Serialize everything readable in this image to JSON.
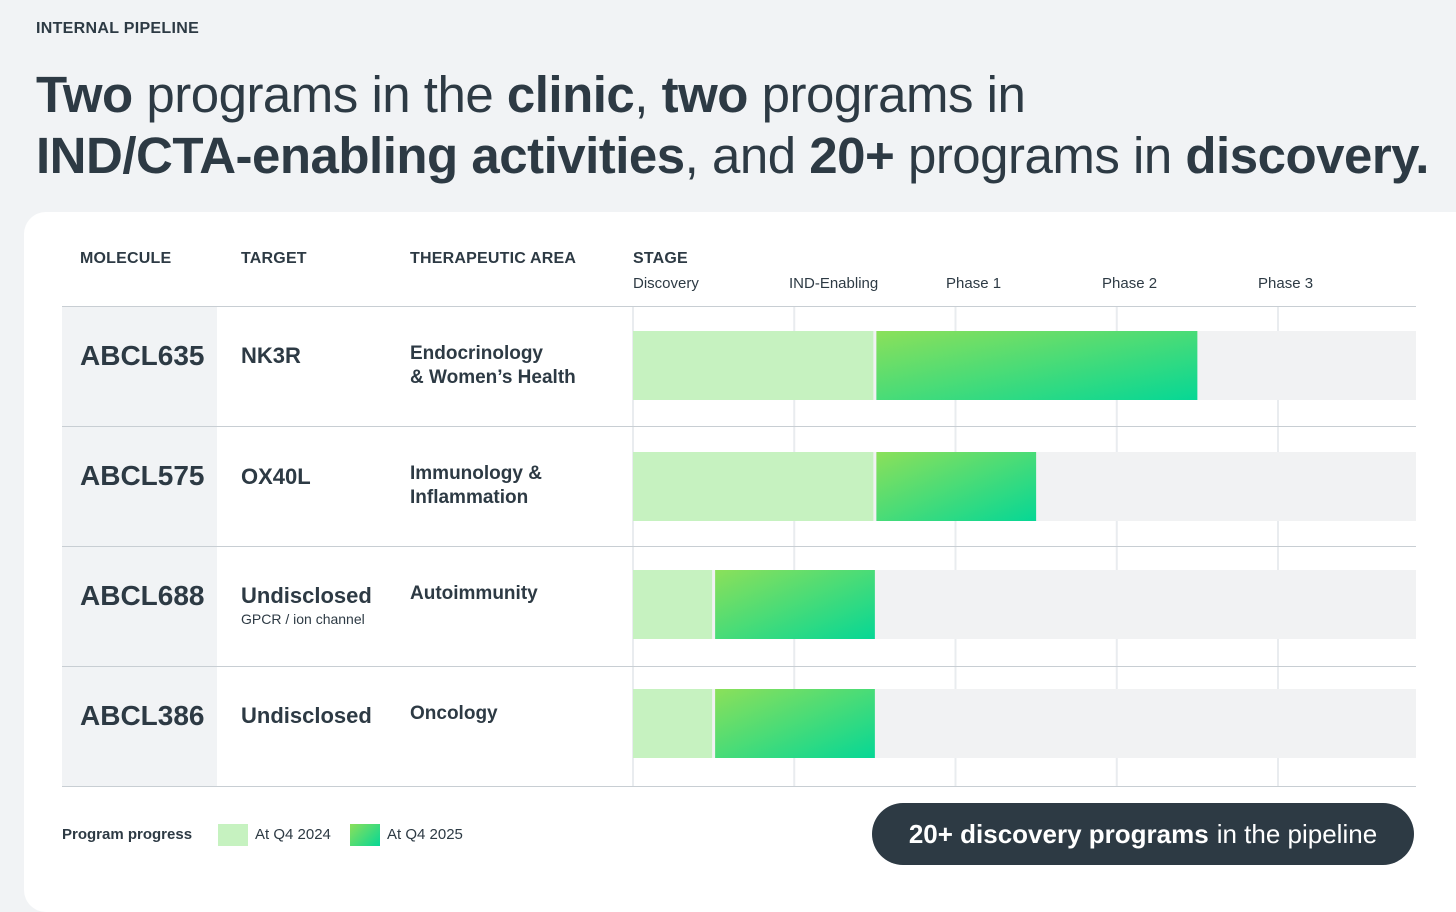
{
  "eyebrow": "INTERNAL PIPELINE",
  "headline": {
    "line1": [
      {
        "t": "Two",
        "b": true
      },
      {
        "t": " programs in the ",
        "b": false
      },
      {
        "t": "clinic",
        "b": true
      },
      {
        "t": ", ",
        "b": false
      },
      {
        "t": "two",
        "b": true
      },
      {
        "t": " programs in",
        "b": false
      }
    ],
    "line2": [
      {
        "t": "IND/CTA-enabling activities",
        "b": true
      },
      {
        "t": ", and ",
        "b": false
      },
      {
        "t": "20+",
        "b": true
      },
      {
        "t": " programs in ",
        "b": false
      },
      {
        "t": "discovery.",
        "b": true
      }
    ]
  },
  "columns": {
    "molecule": "MOLECULE",
    "target": "TARGET",
    "area": "THERAPEUTIC AREA",
    "stage": "STAGE"
  },
  "chart_data": {
    "type": "bar",
    "orientation": "horizontal",
    "stages": [
      "Discovery",
      "IND-Enabling",
      "Phase 1",
      "Phase 2",
      "Phase 3"
    ],
    "value_unit": "stages completed (0-5 scale)",
    "series": [
      {
        "name": "At Q4 2024",
        "color_from": "#c6f2c0",
        "color_to": "#c6f2c0"
      },
      {
        "name": "At Q4 2025",
        "color_from": "#8be05a",
        "color_to": "#06d795"
      }
    ],
    "rows": [
      {
        "molecule": "ABCL635",
        "target": "NK3R",
        "target_sub": "",
        "area": "Endocrinology\n& Women’s Health",
        "q4_2024": 1.5,
        "q4_2025": 3.5
      },
      {
        "molecule": "ABCL575",
        "target": "OX40L",
        "target_sub": "",
        "area": "Immunology &\nInflammation",
        "q4_2024": 1.5,
        "q4_2025": 2.5
      },
      {
        "molecule": "ABCL688",
        "target": "Undisclosed",
        "target_sub": "GPCR / ion channel",
        "area": "Autoimmunity",
        "q4_2024": 0.5,
        "q4_2025": 1.5
      },
      {
        "molecule": "ABCL386",
        "target": "Undisclosed",
        "target_sub": "",
        "area": "Oncology",
        "q4_2024": 0.5,
        "q4_2025": 1.5
      }
    ],
    "xlim": [
      0,
      5
    ]
  },
  "legend": {
    "title": "Program progress",
    "items": [
      "At Q4 2024",
      "At Q4 2025"
    ]
  },
  "callout": {
    "bold": "20+ discovery programs",
    "rest": "in the pipeline"
  }
}
